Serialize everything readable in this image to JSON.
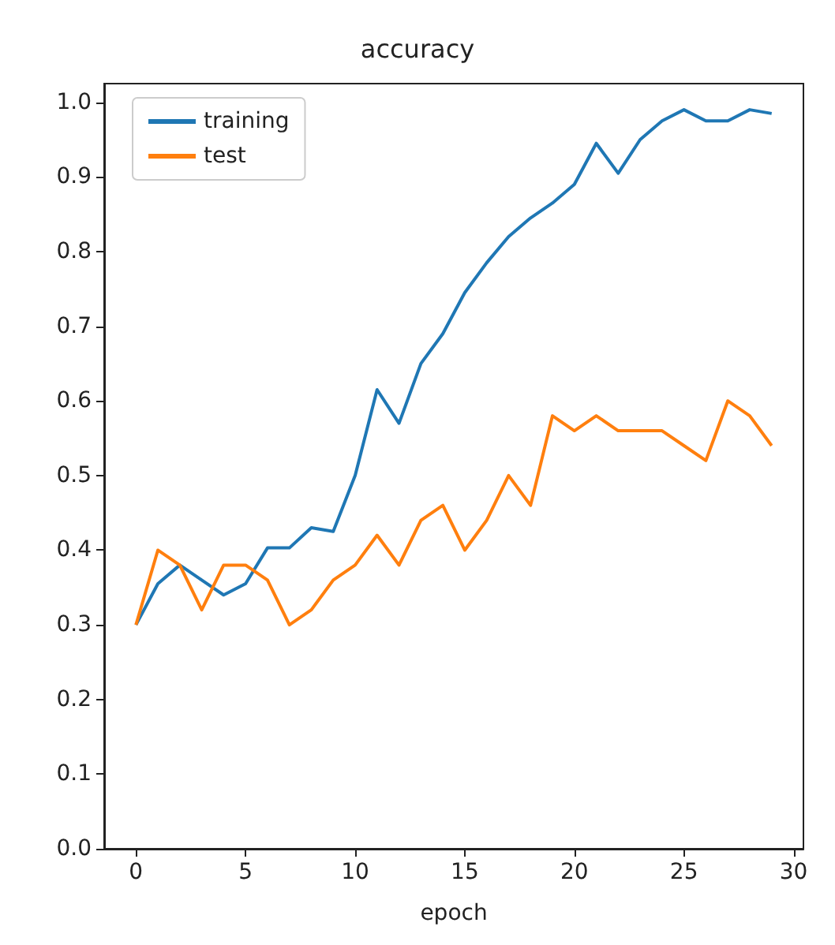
{
  "chart_data": {
    "type": "line",
    "title": "accuracy",
    "xlabel": "epoch",
    "x": [
      0,
      1,
      2,
      3,
      4,
      5,
      6,
      7,
      8,
      9,
      10,
      11,
      12,
      13,
      14,
      15,
      16,
      17,
      18,
      19,
      20,
      21,
      22,
      23,
      24,
      25,
      26,
      27,
      28,
      29
    ],
    "series": [
      {
        "name": "training",
        "color": "#1f77b4",
        "values": [
          0.3,
          0.355,
          0.38,
          0.36,
          0.34,
          0.355,
          0.403,
          0.403,
          0.43,
          0.425,
          0.5,
          0.615,
          0.57,
          0.65,
          0.69,
          0.745,
          0.785,
          0.82,
          0.845,
          0.865,
          0.89,
          0.945,
          0.905,
          0.95,
          0.975,
          0.99,
          0.975,
          0.975,
          0.99,
          0.985
        ]
      },
      {
        "name": "test",
        "color": "#ff7f0e",
        "values": [
          0.3,
          0.4,
          0.38,
          0.32,
          0.38,
          0.38,
          0.36,
          0.3,
          0.32,
          0.36,
          0.38,
          0.42,
          0.38,
          0.44,
          0.46,
          0.4,
          0.44,
          0.5,
          0.46,
          0.58,
          0.56,
          0.58,
          0.56,
          0.56,
          0.56,
          0.54,
          0.52,
          0.6,
          0.58,
          0.54
        ]
      }
    ],
    "xlim": [
      -1.45,
      30.45
    ],
    "xticks": [
      0,
      5,
      10,
      15,
      20,
      25,
      30
    ],
    "ylim": [
      0,
      1.025
    ],
    "yticks": [
      {
        "value": 0,
        "label": "0.0"
      },
      0.1,
      0.2,
      0.3,
      0.4,
      0.5,
      0.6,
      0.7,
      0.8,
      0.9,
      {
        "value": 1,
        "label": "1.0"
      }
    ],
    "legend": "top left",
    "grid": false,
    "marker": "none",
    "line_style": "solid"
  }
}
